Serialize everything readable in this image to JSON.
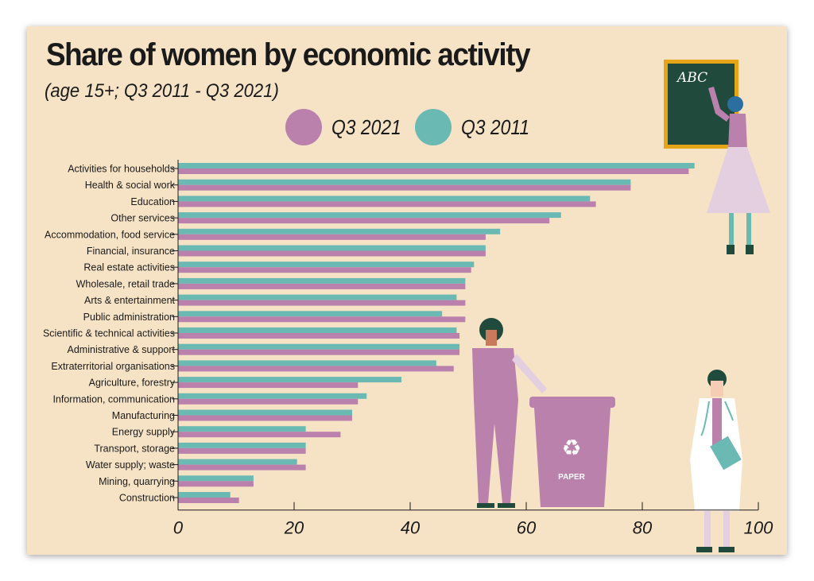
{
  "colors": {
    "q2021": "#b981ac",
    "q2011": "#6ab9b3",
    "background": "#f6e3c6",
    "axis": "#1a1a1a"
  },
  "illustration": {
    "chalkboard_text": "ABC",
    "bin_label": "PAPER"
  },
  "chart_data": {
    "type": "bar",
    "orientation": "horizontal",
    "title": "Share of women by economic activity",
    "subtitle": "(age 15+; Q3 2011 - Q3 2021)",
    "legend_position": "top",
    "xlim": [
      0,
      100
    ],
    "xticks": [
      0,
      20,
      40,
      60,
      80,
      100
    ],
    "categories": [
      "Activities for households",
      "Health & social work",
      "Education",
      "Other services",
      "Accommodation, food service",
      "Financial, insurance",
      "Real estate activities",
      "Wholesale, retail trade",
      "Arts & entertainment",
      "Public administration",
      "Scientific & technical activities",
      "Administrative & support",
      "Extraterritorial organisations",
      "Agriculture, forestry",
      "Information, communication",
      "Manufacturing",
      "Energy supply",
      "Transport, storage",
      "Water supply; waste",
      "Mining, quarrying",
      "Construction"
    ],
    "series": [
      {
        "name": "Q3 2021",
        "values": [
          88,
          78,
          72,
          64,
          53,
          53,
          50.5,
          49.5,
          49.5,
          49.5,
          48.5,
          48.5,
          47.5,
          31,
          31,
          30,
          28,
          22,
          22,
          13,
          10.5
        ]
      },
      {
        "name": "Q3 2011",
        "values": [
          89,
          78,
          71,
          66,
          55.5,
          53,
          51,
          49.5,
          48,
          45.5,
          48,
          48.5,
          44.5,
          38.5,
          32.5,
          30,
          22,
          22,
          20.5,
          13,
          9
        ]
      }
    ]
  }
}
